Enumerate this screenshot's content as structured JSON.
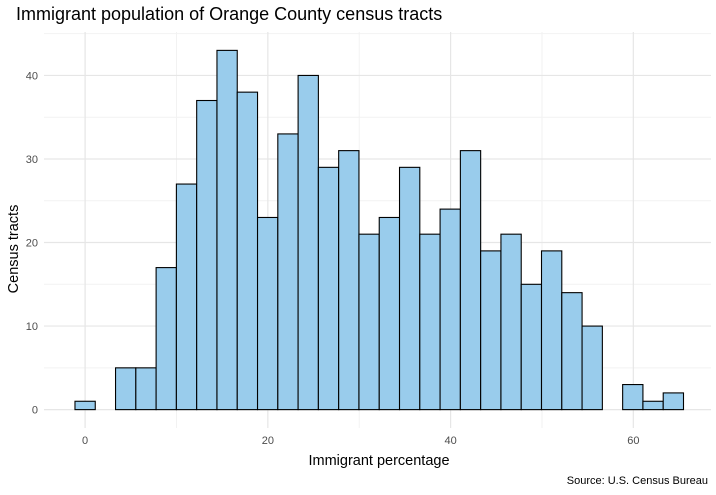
{
  "chart_data": {
    "type": "bar",
    "title": "Immigrant population of Orange County census tracts",
    "xlabel": "Immigrant percentage",
    "ylabel": "Census tracts",
    "caption": "Source: U.S. Census Bureau",
    "bin_width": 2.22,
    "bins": [
      {
        "x": 0.0,
        "count": 1
      },
      {
        "x": 2.22,
        "count": 0
      },
      {
        "x": 4.44,
        "count": 5
      },
      {
        "x": 6.66,
        "count": 5
      },
      {
        "x": 8.88,
        "count": 17
      },
      {
        "x": 11.1,
        "count": 27
      },
      {
        "x": 13.32,
        "count": 37
      },
      {
        "x": 15.54,
        "count": 43
      },
      {
        "x": 17.76,
        "count": 38
      },
      {
        "x": 19.98,
        "count": 23
      },
      {
        "x": 22.2,
        "count": 33
      },
      {
        "x": 24.42,
        "count": 40
      },
      {
        "x": 26.64,
        "count": 29
      },
      {
        "x": 28.86,
        "count": 31
      },
      {
        "x": 31.08,
        "count": 21
      },
      {
        "x": 33.3,
        "count": 23
      },
      {
        "x": 35.52,
        "count": 29
      },
      {
        "x": 37.74,
        "count": 21
      },
      {
        "x": 39.96,
        "count": 24
      },
      {
        "x": 42.18,
        "count": 31
      },
      {
        "x": 44.4,
        "count": 19
      },
      {
        "x": 46.62,
        "count": 21
      },
      {
        "x": 48.84,
        "count": 15
      },
      {
        "x": 51.06,
        "count": 19
      },
      {
        "x": 53.28,
        "count": 14
      },
      {
        "x": 55.5,
        "count": 10
      },
      {
        "x": 57.72,
        "count": 0
      },
      {
        "x": 59.94,
        "count": 3
      },
      {
        "x": 62.16,
        "count": 1
      },
      {
        "x": 64.38,
        "count": 2
      }
    ],
    "x_ticks": [
      0,
      20,
      40,
      60
    ],
    "y_ticks": [
      0,
      10,
      20,
      30,
      40
    ],
    "xlim": [
      -4.5,
      68.5
    ],
    "ylim": [
      -2.2,
      45.2
    ],
    "grid": true,
    "fill_color": "#99ccec",
    "edge_color": "#000000"
  }
}
